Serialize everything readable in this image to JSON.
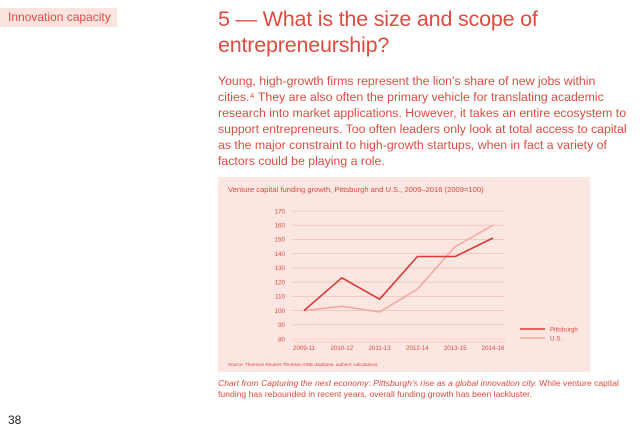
{
  "header": {
    "section_tag": "Innovation capacity",
    "title": "5 — What is the size and scope of entrepreneurship?"
  },
  "body": {
    "paragraph": "Young, high-growth firms represent the lion’s share of new jobs within cities.⁴ They are also often the primary vehicle for translating academic research into market applications. However, it takes an entire ecosystem to support entrepreneurs. Too often leaders only look at total access to capital as the major constraint to high-growth startups, when in fact a variety of factors could be playing a role."
  },
  "chart_data": {
    "type": "line",
    "title": "Venture capital funding growth, Pittsburgh and U.S., 2009–2016 (2009=100)",
    "categories": [
      "2009-11",
      "2010-12",
      "2011-13",
      "2012-14",
      "2013-15",
      "2014-16"
    ],
    "series": [
      {
        "name": "Pittsburgh",
        "color": "#d93a33",
        "values": [
          100,
          123,
          108,
          138,
          138,
          151
        ]
      },
      {
        "name": "U.S.",
        "color": "#f0a8a0",
        "values": [
          100,
          103,
          99,
          115,
          145,
          160
        ]
      }
    ],
    "yticks": [
      80,
      90,
      100,
      110,
      120,
      130,
      140,
      150,
      160,
      170
    ],
    "ylim": [
      80,
      170
    ],
    "grid": true,
    "legend_position": "right",
    "source": "Source: Thomson Reuters Thomson ONE database, authors’ calculations."
  },
  "caption": {
    "italic": "Chart from Capturing the next economy: Pittsburgh’s rise as a global innovation city.",
    "rest": " While venture capital funding has rebounded in recent years, overall funding growth has been lackluster."
  },
  "footer": {
    "page_number": "38"
  },
  "colors": {
    "accent": "#e04a3f",
    "chart_bg": "#fbe6e2",
    "tag_bg": "#fbe4e0"
  }
}
